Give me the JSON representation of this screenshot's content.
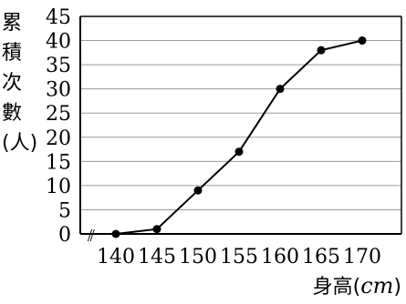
{
  "chart_data": {
    "type": "line",
    "x": [
      140,
      145,
      150,
      155,
      160,
      165,
      170
    ],
    "x_tick_labels": [
      "140",
      "145",
      "150",
      "155",
      "160",
      "165",
      "170"
    ],
    "values": [
      0,
      1,
      9,
      17,
      30,
      38,
      40
    ],
    "y_ticks": [
      "0",
      "5",
      "10",
      "15",
      "20",
      "25",
      "30",
      "35",
      "40",
      "45"
    ],
    "ylim": [
      0,
      45
    ],
    "ylabel_chars": [
      "累",
      "積",
      "次",
      "數",
      "(人)"
    ],
    "xlabel": {
      "text": "身高",
      "open": "(",
      "unit": "cm",
      "close": ")"
    },
    "axis_break": "⫽",
    "grid": true,
    "line_color": "#000000",
    "grid_color": "#9a9a9a"
  }
}
